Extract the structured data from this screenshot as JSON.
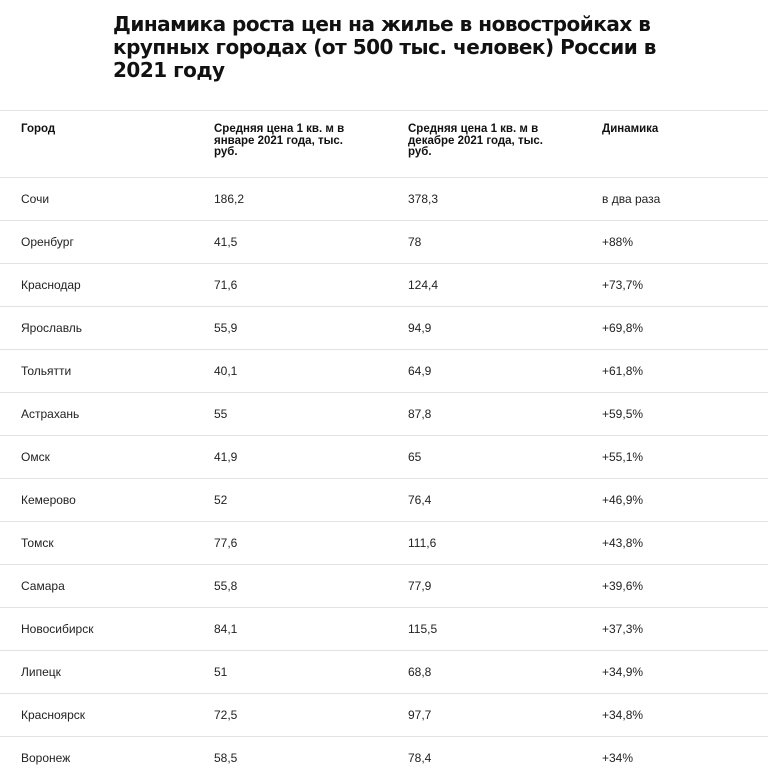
{
  "title": "Динамика роста цен на жилье в новостройках в крупных городах (от 500 тыс. человек) России в 2021 году",
  "table": {
    "headers": [
      "Город",
      "Средняя цена 1 кв. м в январе 2021 года, тыс. руб.",
      "Средняя цена 1 кв. м в декабре 2021 года, тыс. руб.",
      "Динамика"
    ],
    "rows": [
      [
        "Сочи",
        "186,2",
        "378,3",
        "в два раза"
      ],
      [
        "Оренбург",
        "41,5",
        "78",
        "+88%"
      ],
      [
        "Краснодар",
        "71,6",
        "124,4",
        "+73,7%"
      ],
      [
        "Ярославль",
        "55,9",
        "94,9",
        "+69,8%"
      ],
      [
        "Тольятти",
        "40,1",
        "64,9",
        "+61,8%"
      ],
      [
        "Астрахань",
        "55",
        "87,8",
        "+59,5%"
      ],
      [
        "Омск",
        "41,9",
        "65",
        "+55,1%"
      ],
      [
        "Кемерово",
        "52",
        "76,4",
        "+46,9%"
      ],
      [
        "Томск",
        "77,6",
        "111,6",
        "+43,8%"
      ],
      [
        "Самара",
        "55,8",
        "77,9",
        "+39,6%"
      ],
      [
        "Новосибирск",
        "84,1",
        "115,5",
        "+37,3%"
      ],
      [
        "Липецк",
        "51",
        "68,8",
        "+34,9%"
      ],
      [
        "Красноярск",
        "72,5",
        "97,7",
        "+34,8%"
      ],
      [
        "Воронеж",
        "58,5",
        "78,4",
        "+34%"
      ]
    ]
  }
}
